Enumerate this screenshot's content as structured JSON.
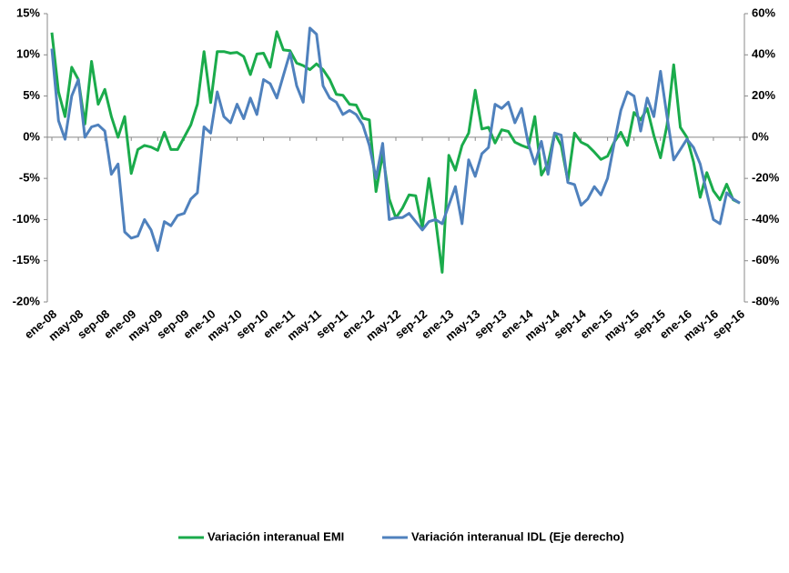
{
  "chart_data": {
    "type": "line",
    "categories": [
      "ene-08",
      null,
      null,
      null,
      "may-08",
      null,
      null,
      null,
      "sep-08",
      null,
      null,
      null,
      "ene-09",
      null,
      null,
      null,
      "may-09",
      null,
      null,
      null,
      "sep-09",
      null,
      null,
      null,
      "ene-10",
      null,
      null,
      null,
      "may-10",
      null,
      null,
      null,
      "sep-10",
      null,
      null,
      null,
      "ene-11",
      null,
      null,
      null,
      "may-11",
      null,
      null,
      null,
      "sep-11",
      null,
      null,
      null,
      "ene-12",
      null,
      null,
      null,
      "may-12",
      null,
      null,
      null,
      "sep-12",
      null,
      null,
      null,
      "ene-13",
      null,
      null,
      null,
      "may-13",
      null,
      null,
      null,
      "sep-13",
      null,
      null,
      null,
      "ene-14",
      null,
      null,
      null,
      "may-14",
      null,
      null,
      null,
      "sep-14",
      null,
      null,
      null,
      "ene-15",
      null,
      null,
      null,
      "may-15",
      null,
      null,
      null,
      "sep-15",
      null,
      null,
      null,
      "ene-16",
      null,
      null,
      null,
      "may-16",
      null,
      null,
      null,
      "sep-16"
    ],
    "series": [
      {
        "name": "Variación interanual EMI",
        "color": "#1aab4b",
        "values": [
          12.7,
          5.5,
          2.5,
          8.5,
          7.0,
          1.6,
          9.2,
          4.0,
          5.8,
          2.5,
          0.0,
          2.5,
          -4.4,
          -1.5,
          -1.0,
          -1.2,
          -1.6,
          0.6,
          -1.5,
          -1.5,
          0.0,
          1.5,
          4.0,
          10.4,
          4.2,
          10.4,
          10.4,
          10.2,
          10.3,
          9.8,
          7.6,
          10.1,
          10.2,
          8.5,
          12.8,
          10.6,
          10.5,
          9.0,
          8.7,
          8.2,
          8.9,
          8.2,
          7.0,
          5.2,
          5.1,
          4.0,
          3.9,
          2.3,
          2.1,
          -6.6,
          -2.0,
          -7.5,
          -9.8,
          -8.6,
          -7.0,
          -7.1,
          -11.0,
          -5.0,
          -10.0,
          -16.4,
          -2.2,
          -4.0,
          -1.0,
          0.5,
          5.7,
          1.0,
          1.2,
          -0.7,
          0.9,
          0.7,
          -0.6,
          -1.0,
          -1.3,
          2.5,
          -4.6,
          -3.2,
          0.5,
          -1.0,
          -5.3,
          0.5,
          -0.6,
          -1.0,
          -1.8,
          -2.7,
          -2.3,
          -0.6,
          0.6,
          -1.0,
          3.0,
          2.1,
          3.5,
          0.2,
          -2.5,
          1.5,
          8.8,
          1.2,
          0.0,
          -3.0,
          -7.3,
          -4.3,
          -6.5,
          -7.6,
          -5.7,
          -7.6,
          -8.0
        ]
      },
      {
        "name": "Variación interanual IDL (Eje derecho)",
        "color": "#4f81bd",
        "axis": "y2",
        "values": [
          43,
          8,
          -1,
          20,
          28,
          0,
          5,
          6,
          3,
          -18,
          -13,
          -46,
          -49,
          -48,
          -40,
          -45,
          -55,
          -41,
          -43,
          -38,
          -37,
          -30,
          -27,
          5,
          2,
          22,
          10,
          7,
          16,
          9,
          19,
          11,
          28,
          26,
          19,
          30,
          41,
          25,
          17,
          53,
          50,
          25,
          19,
          17,
          11,
          13,
          11,
          6,
          -4,
          -20,
          -3,
          -40,
          -39,
          -39,
          -37,
          -41,
          -45,
          -41,
          -40,
          -42,
          -33,
          -24,
          -42,
          -11,
          -19,
          -8,
          -5,
          16,
          14,
          17,
          7,
          14,
          -3,
          -13,
          -2,
          -18,
          2,
          1,
          -22,
          -23,
          -33,
          -30,
          -24,
          -28,
          -20,
          -3,
          13,
          22,
          20,
          3,
          19,
          10,
          32,
          10,
          -11,
          -6,
          -1,
          -5,
          -13,
          -27,
          -40,
          -42,
          -27,
          -30,
          -32
        ]
      }
    ],
    "ylim": [
      -20,
      15
    ],
    "yticks": [
      {
        "value": -20,
        "label": "-20%"
      },
      {
        "value": -15,
        "label": "-15%"
      },
      {
        "value": -10,
        "label": "-10%"
      },
      {
        "value": -5,
        "label": "-5%"
      },
      {
        "value": 0,
        "label": "0%"
      },
      {
        "value": 5,
        "label": "5%"
      },
      {
        "value": 10,
        "label": "10%"
      },
      {
        "value": 15,
        "label": "15%"
      }
    ],
    "y2lim": [
      -80,
      60
    ],
    "y2ticks": [
      {
        "value": -80,
        "label": "-80%"
      },
      {
        "value": -60,
        "label": "-60%"
      },
      {
        "value": -40,
        "label": "-40%"
      },
      {
        "value": -20,
        "label": "-20%"
      },
      {
        "value": 0,
        "label": "0%"
      },
      {
        "value": 20,
        "label": "20%"
      },
      {
        "value": 40,
        "label": "40%"
      },
      {
        "value": 60,
        "label": "60%"
      }
    ],
    "grid": false,
    "legend": "bottom"
  }
}
